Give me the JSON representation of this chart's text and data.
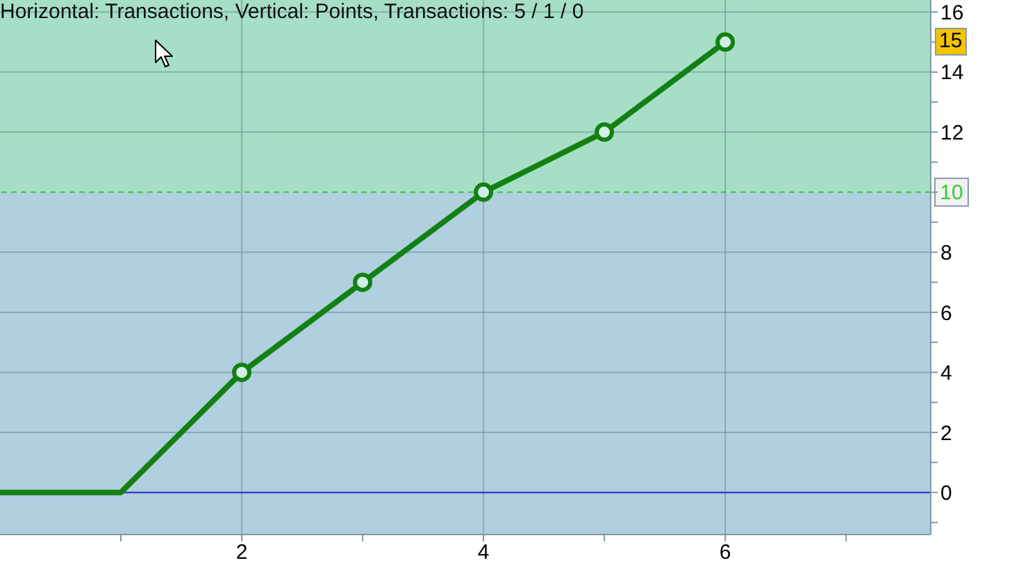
{
  "chart_data": {
    "type": "line",
    "title": "Horizontal: Transactions, Vertical: Points, Transactions: 5 / 1 / 0",
    "series": [
      {
        "color": "#138013",
        "x": [
          0,
          1,
          2,
          3,
          4,
          5,
          6
        ],
        "values": [
          0,
          0,
          4,
          7,
          10,
          12,
          15
        ],
        "marker": "none"
      },
      {
        "type": "scatter",
        "color": "#138013",
        "x": [
          2,
          3,
          4,
          5,
          6
        ],
        "values": [
          4,
          7,
          10,
          12,
          15
        ],
        "marker": "circle"
      }
    ],
    "xlim": [
      0,
      7.7
    ],
    "xticks": [
      {
        "value": 1,
        "label": null
      },
      2,
      {
        "value": 3,
        "label": null
      },
      4,
      {
        "value": 5,
        "label": null
      },
      6,
      {
        "value": 7,
        "label": null
      }
    ],
    "ylim": [
      -1.4,
      16.4
    ],
    "yticks": [
      {
        "value": -1,
        "label": null
      },
      0,
      {
        "value": 1,
        "label": null
      },
      2,
      {
        "value": 3,
        "label": null
      },
      4,
      {
        "value": 5,
        "label": null
      },
      6,
      {
        "value": 7,
        "label": null
      },
      8,
      {
        "value": 9,
        "label": null
      },
      {
        "value": 10,
        "label": null
      },
      {
        "value": 11,
        "label": null
      },
      12,
      {
        "value": 13,
        "label": null
      },
      14,
      {
        "value": 15,
        "label": null
      },
      16
    ],
    "grid": true,
    "line_style": "solid",
    "ref_lines": [
      {
        "axis": "y",
        "value": 0,
        "color": "#2a2ad0"
      },
      {
        "axis": "y",
        "value": 10,
        "label": "10",
        "color": "#33cc33",
        "line_style": "dashed"
      }
    ],
    "bands": [
      {
        "axis": "y",
        "from": 10,
        "to": 16.4,
        "color": "#a6dfc6"
      },
      {
        "axis": "y",
        "from": -1.4,
        "to": 10,
        "color": "#b0cfdf"
      }
    ],
    "annotations": [
      {
        "text": "15",
        "y": 15
      }
    ]
  }
}
